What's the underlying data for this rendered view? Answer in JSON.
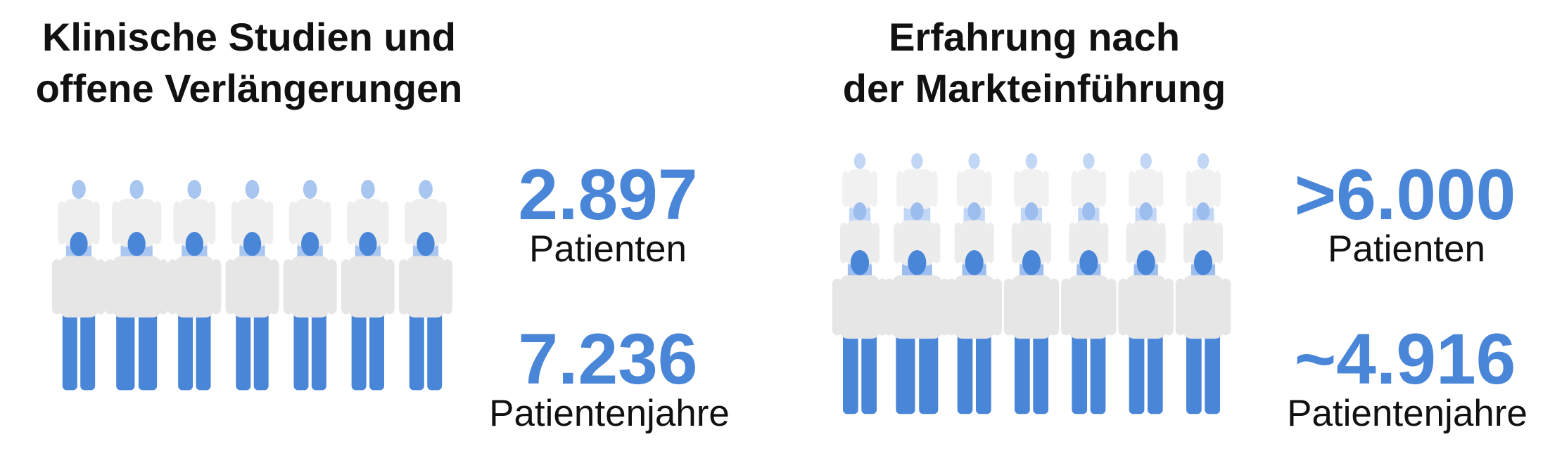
{
  "panels": [
    {
      "title": [
        "Klinische Studien und",
        "offene Verlängerungen"
      ],
      "stats": [
        {
          "value": "2.897",
          "label": "Patienten"
        },
        {
          "value": "7.236",
          "label": "Patientenjahre"
        }
      ]
    },
    {
      "title": [
        "Erfahrung nach",
        "der Markteinführung"
      ],
      "stats": [
        {
          "value": ">6.000",
          "label": "Patienten"
        },
        {
          "value": "~4.916",
          "label": "Patientenjahre"
        }
      ]
    }
  ]
}
